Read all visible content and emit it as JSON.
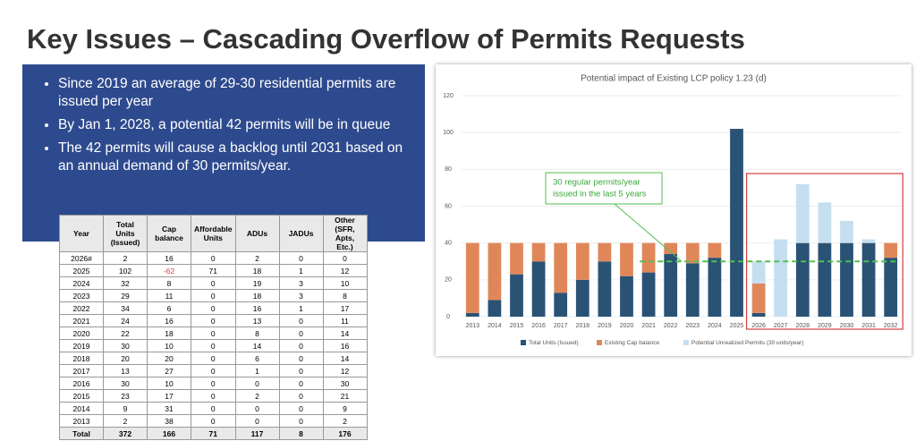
{
  "header": {
    "title": "Key Issues – Cascading Overflow of Permits Requests"
  },
  "bullets": [
    "Since 2019 an average of 29-30 residential permits are issued per year",
    "By Jan 1, 2028, a potential 42 permits will be in queue",
    "The 42 permits will cause a backlog until 2031 based on an annual demand of 30 permits/year."
  ],
  "table": {
    "columns": [
      "Year",
      "Total Units (Issued)",
      "Cap balance",
      "Affordable Units",
      "ADUs",
      "JADUs",
      "Other (SFR, Apts, Etc.)"
    ],
    "rows": [
      [
        "2026#",
        "2",
        "16",
        "0",
        "2",
        "0",
        "0"
      ],
      [
        "2025",
        "102",
        "-62",
        "71",
        "18",
        "1",
        "12"
      ],
      [
        "2024",
        "32",
        "8",
        "0",
        "19",
        "3",
        "10"
      ],
      [
        "2023",
        "29",
        "11",
        "0",
        "18",
        "3",
        "8"
      ],
      [
        "2022",
        "34",
        "6",
        "0",
        "16",
        "1",
        "17"
      ],
      [
        "2021",
        "24",
        "16",
        "0",
        "13",
        "0",
        "11"
      ],
      [
        "2020",
        "22",
        "18",
        "0",
        "8",
        "0",
        "14"
      ],
      [
        "2019",
        "30",
        "10",
        "0",
        "14",
        "0",
        "16"
      ],
      [
        "2018",
        "20",
        "20",
        "0",
        "6",
        "0",
        "14"
      ],
      [
        "2017",
        "13",
        "27",
        "0",
        "1",
        "0",
        "12"
      ],
      [
        "2016",
        "30",
        "10",
        "0",
        "0",
        "0",
        "30"
      ],
      [
        "2015",
        "23",
        "17",
        "0",
        "2",
        "0",
        "21"
      ],
      [
        "2014",
        "9",
        "31",
        "0",
        "0",
        "0",
        "9"
      ],
      [
        "2013",
        "2",
        "38",
        "0",
        "0",
        "0",
        "2"
      ],
      [
        "Total",
        "372",
        "166",
        "71",
        "117",
        "8",
        "176"
      ]
    ]
  },
  "chart_data": {
    "type": "stacked_bar",
    "title": "Potential impact of Existing LCP policy 1.23 (d)",
    "categories": [
      "2013",
      "2014",
      "2015",
      "2016",
      "2017",
      "2018",
      "2019",
      "2020",
      "2021",
      "2022",
      "2023",
      "2024",
      "2025",
      "2026",
      "2027",
      "2028",
      "2029",
      "2030",
      "2031",
      "2032"
    ],
    "series": [
      {
        "name": "Total Units (Issued)",
        "color": "#2a5275",
        "values": [
          2,
          9,
          23,
          30,
          13,
          20,
          30,
          22,
          24,
          34,
          29,
          32,
          102,
          2,
          null,
          40,
          40,
          40,
          40,
          32
        ]
      },
      {
        "name": "Existing Cap balance",
        "color": "#e0875a",
        "values": [
          38,
          31,
          17,
          10,
          27,
          20,
          10,
          18,
          16,
          6,
          11,
          8,
          null,
          16,
          null,
          null,
          null,
          null,
          null,
          8
        ]
      },
      {
        "name": "Potential Unrealized Permits (30 units/year)",
        "color": "#c5dff0",
        "values": [
          null,
          null,
          null,
          null,
          null,
          null,
          null,
          null,
          null,
          null,
          null,
          null,
          null,
          12,
          42,
          32,
          22,
          12,
          2,
          null
        ]
      }
    ],
    "ylim": [
      0,
      120
    ],
    "yticks": [
      0,
      20,
      40,
      60,
      80,
      100,
      120
    ],
    "reference_line": {
      "value": 30,
      "from": "2021",
      "to": "2032",
      "color": "#4fc24f"
    },
    "annotation": [
      "30 regular permits/year",
      "issued in the last 5 years"
    ],
    "highlight": {
      "from": "2026",
      "to": "2032",
      "color": "#d04040"
    }
  }
}
